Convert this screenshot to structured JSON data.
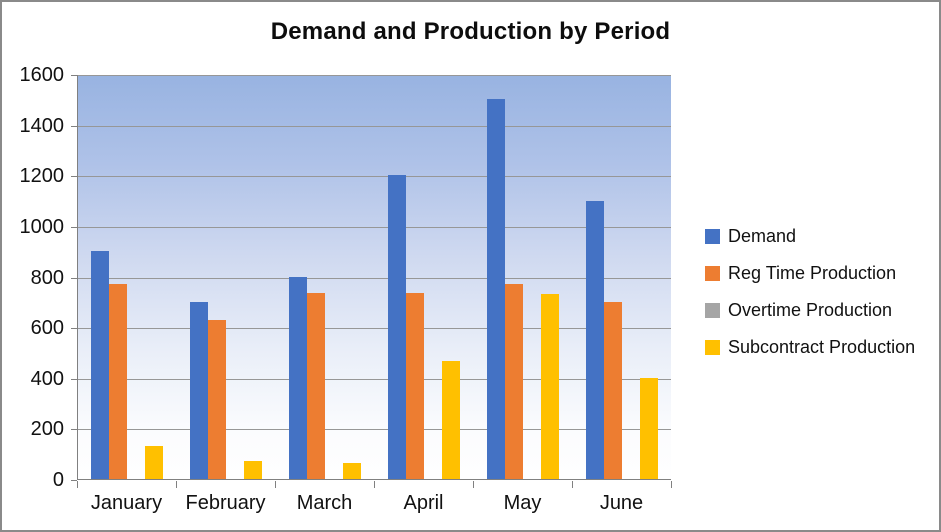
{
  "chart_data": {
    "type": "bar",
    "title": "Demand and Production by Period",
    "categories": [
      "January",
      "February",
      "March",
      "April",
      "May",
      "June"
    ],
    "series": [
      {
        "name": "Demand",
        "color": "#4472C4",
        "values": [
          900,
          700,
          800,
          1200,
          1500,
          1100
        ]
      },
      {
        "name": "Reg Time Production",
        "color": "#ED7D31",
        "values": [
          770,
          630,
          735,
          735,
          770,
          700
        ]
      },
      {
        "name": "Overtime Production",
        "color": "#A5A5A5",
        "values": [
          0,
          0,
          0,
          0,
          0,
          0
        ]
      },
      {
        "name": "Subcontract Production",
        "color": "#FFC000",
        "values": [
          130,
          70,
          65,
          465,
          730,
          400
        ]
      }
    ],
    "xlabel": "",
    "ylabel": "",
    "ylim": [
      0,
      1600
    ],
    "yticks": [
      0,
      200,
      400,
      600,
      800,
      1000,
      1200,
      1400,
      1600
    ],
    "grid": "horizontal",
    "legend_position": "right-middle",
    "plot_background_gradient": [
      "#98B3E1",
      "#FEFEFF"
    ],
    "gridline_color": "#979797",
    "axis_line_color": "#808080",
    "chart_border_color": "#8A8A8A"
  }
}
